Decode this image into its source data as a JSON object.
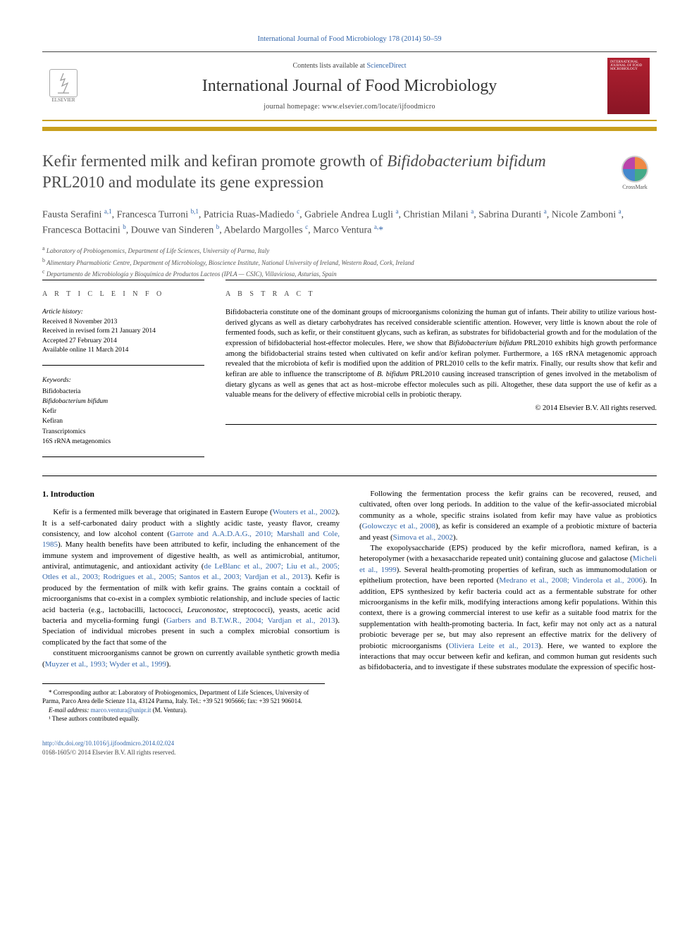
{
  "citation": "International Journal of Food Microbiology 178 (2014) 50–59",
  "masthead": {
    "contents_prefix": "Contents lists available at ",
    "contents_link": "ScienceDirect",
    "journal": "International Journal of Food Microbiology",
    "homepage_prefix": "journal homepage: ",
    "homepage_url": "www.elsevier.com/locate/ijfoodmicro",
    "publisher_name": "ELSEVIER",
    "cover_text": "INTERNATIONAL JOURNAL OF FOOD MICROBIOLOGY"
  },
  "crossmark_label": "CrossMark",
  "title_pre": "Kefir fermented milk and kefiran promote growth of ",
  "title_ital": "Bifidobacterium bifidum",
  "title_post": " PRL2010 and modulate its gene expression",
  "authors_html": "Fausta Serafini <sup>a,1</sup>, Francesca Turroni <sup>b,1</sup>, Patricia Ruas-Madiedo <sup>c</sup>, Gabriele Andrea Lugli <sup>a</sup>, Christian Milani <sup>a</sup>, Sabrina Duranti <sup>a</sup>, Nicole Zamboni <sup>a</sup>, Francesca Bottacini <sup>b</sup>, Douwe van Sinderen <sup>b</sup>, Abelardo Margolles <sup>c</sup>, Marco Ventura <sup>a,</sup><span class=\"star\">*</span>",
  "affiliations": [
    {
      "sup": "a",
      "text": "Laboratory of Probiogenomics, Department of Life Sciences, University of Parma, Italy"
    },
    {
      "sup": "b",
      "text": "Alimentary Pharmabiotic Centre, Department of Microbiology, Bioscience Institute, National University of Ireland, Western Road, Cork, Ireland"
    },
    {
      "sup": "c",
      "text": "Departamento de Microbiología y Bioquímica de Productos Lacteos (IPLA — CSIC), Villaviciosa, Asturias, Spain"
    }
  ],
  "info": {
    "heading": "a r t i c l e   i n f o",
    "history_label": "Article history:",
    "history": [
      "Received 8 November 2013",
      "Received in revised form 21 January 2014",
      "Accepted 27 February 2014",
      "Available online 11 March 2014"
    ],
    "keywords_label": "Keywords:",
    "keywords": [
      "Bifidobacteria",
      "<em>Bifidobacterium bifidum</em>",
      "Kefir",
      "Kefiran",
      "Transcriptomics",
      "16S rRNA metagenomics"
    ]
  },
  "abstract": {
    "heading": "a b s t r a c t",
    "text": "Bifidobacteria constitute one of the dominant groups of microorganisms colonizing the human gut of infants. Their ability to utilize various host-derived glycans as well as dietary carbohydrates has received considerable scientific attention. However, very little is known about the role of fermented foods, such as kefir, or their constituent glycans, such as kefiran, as substrates for bifidobacterial growth and for the modulation of the expression of bifidobacterial host-effector molecules. Here, we show that <em>Bifidobacterium bifidum</em> PRL2010 exhibits high growth performance among the bifidobacterial strains tested when cultivated on kefir and/or kefiran polymer. Furthermore, a 16S rRNA metagenomic approach revealed that the microbiota of kefir is modified upon the addition of PRL2010 cells to the kefir matrix. Finally, our results show that kefir and kefiran are able to influence the transcriptome of <em>B. bifidum</em> PRL2010 causing increased transcription of genes involved in the metabolism of dietary glycans as well as genes that act as host–microbe effector molecules such as pili. Altogether, these data support the use of kefir as a valuable means for the delivery of effective microbial cells in probiotic therapy.",
    "copyright": "© 2014 Elsevier B.V. All rights reserved."
  },
  "body": {
    "section_heading": "1. Introduction",
    "p1": "Kefir is a fermented milk beverage that originated in Eastern Europe (<a class=\"ref\">Wouters et al., 2002</a>). It is a self-carbonated dairy product with a slightly acidic taste, yeasty flavor, creamy consistency, and low alcohol content (<a class=\"ref\">Garrote and A.A.D.A.G., 2010; Marshall and Cole, 1985</a>). Many health benefits have been attributed to kefir, including the enhancement of the immune system and improvement of digestive health, as well as antimicrobial, antitumor, antiviral, antimutagenic, and antioxidant activity (<a class=\"ref\">de LeBlanc et al., 2007; Liu et al., 2005; Otles et al., 2003; Rodrigues et al., 2005; Santos et al., 2003; Vardjan et al., 2013</a>). Kefir is produced by the fermentation of milk with kefir grains. The grains contain a cocktail of microorganisms that co-exist in a complex symbiotic relationship, and include species of lactic acid bacteria (e.g., lactobacilli, lactococci, <em>Leuconostoc</em>, streptococci), yeasts, acetic acid bacteria and mycelia-forming fungi (<a class=\"ref\">Garbers and B.T.W.R., 2004; Vardjan et al., 2013</a>). Speciation of individual microbes present in such a complex microbial consortium is complicated by the fact that some of the",
    "p2": "constituent microorganisms cannot be grown on currently available synthetic growth media (<a class=\"ref\">Muyzer et al., 1993; Wyder et al., 1999</a>).",
    "p3": "Following the fermentation process the kefir grains can be recovered, reused, and cultivated, often over long periods. In addition to the value of the kefir-associated microbial community as a whole, specific strains isolated from kefir may have value as probiotics (<a class=\"ref\">Golowczyc et al., 2008</a>), as kefir is considered an example of a probiotic mixture of bacteria and yeast (<a class=\"ref\">Simova et al., 2002</a>).",
    "p4": "The exopolysaccharide (EPS) produced by the kefir microflora, named kefiran, is a heteropolymer (with a hexasaccharide repeated unit) containing glucose and galactose (<a class=\"ref\">Micheli et al., 1999</a>). Several health-promoting properties of kefiran, such as immunomodulation or epithelium protection, have been reported (<a class=\"ref\">Medrano et al., 2008; Vinderola et al., 2006</a>). In addition, EPS synthesized by kefir bacteria could act as a fermentable substrate for other microorganisms in the kefir milk, modifying interactions among kefir populations. Within this context, there is a growing commercial interest to use kefir as a suitable food matrix for the supplementation with health-promoting bacteria. In fact, kefir may not only act as a natural probiotic beverage per se, but may also represent an effective matrix for the delivery of probiotic microorganisms (<a class=\"ref\">Oliviera Leite et al., 2013</a>). Here, we wanted to explore the interactions that may occur between kefir and kefiran, and common human gut residents such as bifidobacteria, and to investigate if these substrates modulate the expression of specific host-"
  },
  "footnotes": {
    "corr": "* Corresponding author at: Laboratory of Probiogenomics, Department of Life Sciences, University of Parma, Parco Area delle Scienze 11a, 43124 Parma, Italy. Tel.: +39 521 905666; fax: +39 521 906014.",
    "email_label": "E-mail address:",
    "email": "marco.ventura@unipr.it",
    "email_tail": " (M. Ventura).",
    "equal": "¹ These authors contributed equally."
  },
  "bottom": {
    "doi": "http://dx.doi.org/10.1016/j.ijfoodmicro.2014.02.024",
    "issn_line": "0168-1605/© 2014 Elsevier B.V. All rights reserved."
  },
  "colors": {
    "accent": "#c9a01e",
    "link": "#3366aa",
    "body": "#000000",
    "muted": "#4a4a4a",
    "cover_bg": "#a01c2c"
  }
}
